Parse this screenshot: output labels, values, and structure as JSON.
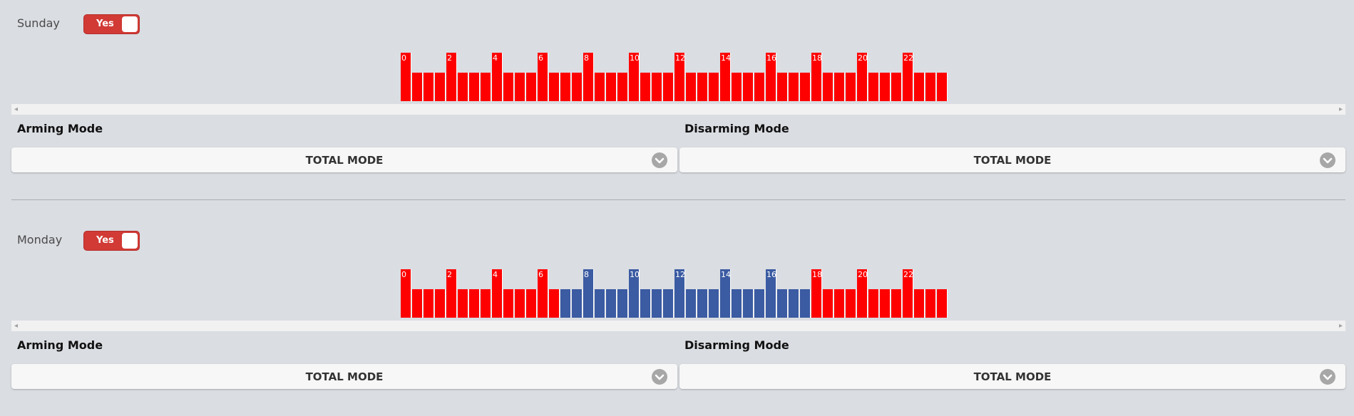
{
  "colors": {
    "armed": "#ff0000",
    "disarmed": "#3b5ba2",
    "toggle": "#d13a35"
  },
  "days": [
    {
      "name": "Sunday",
      "toggle": "Yes",
      "arming_label": "Arming Mode",
      "disarming_label": "Disarming Mode",
      "arming_value": "TOTAL MODE",
      "disarming_value": "TOTAL MODE",
      "disarmed_slot_range": []
    },
    {
      "name": "Monday",
      "toggle": "Yes",
      "arming_label": "Arming Mode",
      "disarming_label": "Disarming Mode",
      "arming_value": "TOTAL MODE",
      "disarming_value": "TOTAL MODE",
      "disarmed_slot_range": [
        14,
        35
      ]
    }
  ],
  "hour_labels": [
    "0",
    "2",
    "4",
    "6",
    "8",
    "10",
    "12",
    "14",
    "16",
    "18",
    "20",
    "22"
  ],
  "slot_count": 48,
  "icons": {
    "dropdown": "chevron-down-icon",
    "scroll_left": "arrow-left-icon",
    "scroll_right": "arrow-right-icon"
  }
}
